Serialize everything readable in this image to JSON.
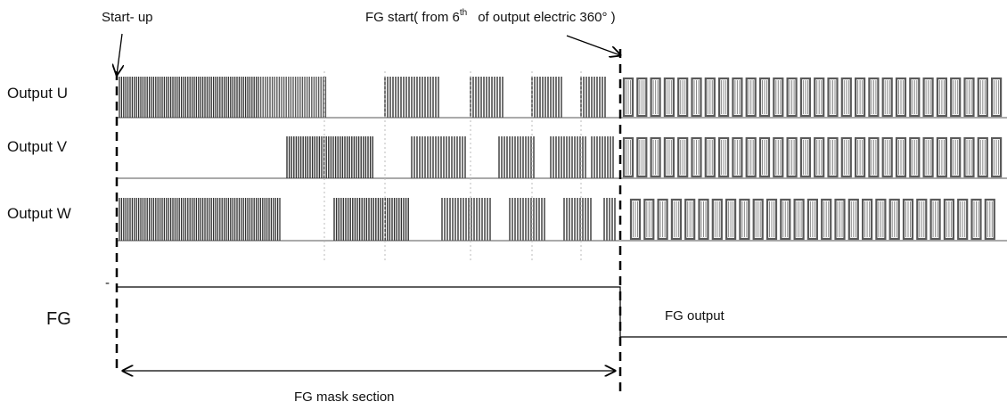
{
  "annotations": {
    "startup": "Start- up",
    "fg_start_prefix": "FG start( from 6",
    "fg_start_sup": "th",
    "fg_start_suffix": "of    output electric 360°  )",
    "fg_output": "FG output",
    "fg_mask": "FG mask section",
    "minus_mark": "-"
  },
  "signals": {
    "u": "Output U",
    "v": "Output V",
    "w": "Output W",
    "fg": "FG"
  },
  "colors": {
    "line": "#000000",
    "pulse_dark": "#333333",
    "pulse_mid": "#5a5a5a",
    "pulse_light": "#8a8a8a",
    "grid": "#bbbbbb"
  }
}
